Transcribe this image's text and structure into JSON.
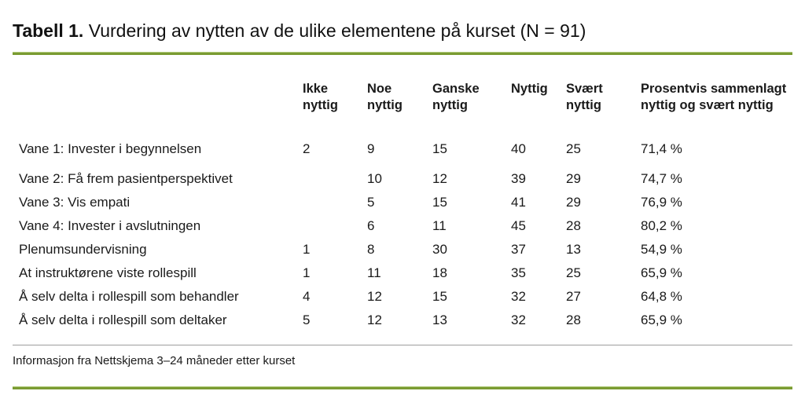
{
  "title": {
    "label": "Tabell 1.",
    "text": "Vurdering av nytten av de ulike elementene på kurset (N = 91)"
  },
  "table": {
    "columns": [
      "Ikke\nnyttig",
      "Noe\nnyttig",
      "Ganske\nnyttig",
      "Nyttig",
      "Svært\nnyttig",
      "Prosentvis sammenlagt\nnyttig og svært nyttig"
    ],
    "rows": [
      {
        "label": "Vane 1: Invester i begynnelsen",
        "values": [
          "2",
          "9",
          "15",
          "40",
          "25",
          "71,4 %"
        ]
      },
      {
        "label": "Vane 2: Få frem pasientperspektivet",
        "values": [
          "",
          "10",
          "12",
          "39",
          "29",
          "74,7 %"
        ]
      },
      {
        "label": "Vane 3: Vis empati",
        "values": [
          "",
          "5",
          "15",
          "41",
          "29",
          "76,9 %"
        ]
      },
      {
        "label": "Vane 4: Invester i avslutningen",
        "values": [
          "",
          "6",
          "11",
          "45",
          "28",
          "80,2 %"
        ]
      },
      {
        "label": "Plenumsundervisning",
        "values": [
          "1",
          "8",
          "30",
          "37",
          "13",
          "54,9 %"
        ]
      },
      {
        "label": "At instruktørene viste rollespill",
        "values": [
          "1",
          "11",
          "18",
          "35",
          "25",
          "65,9 %"
        ]
      },
      {
        "label": "Å selv delta i rollespill som behandler",
        "values": [
          "4",
          "12",
          "15",
          "32",
          "27",
          "64,8 %"
        ]
      },
      {
        "label": "Å selv delta i rollespill som deltaker",
        "values": [
          "5",
          "12",
          "13",
          "32",
          "28",
          "65,9 %"
        ]
      }
    ]
  },
  "footnote": "Informasjon fra Nettskjema 3–24 måneder etter kurset",
  "colors": {
    "accent_green": "#7a9b32",
    "accent_green_light": "#b4cc80",
    "divider_gray": "#9d9d9d",
    "text": "#1a1a1a"
  }
}
